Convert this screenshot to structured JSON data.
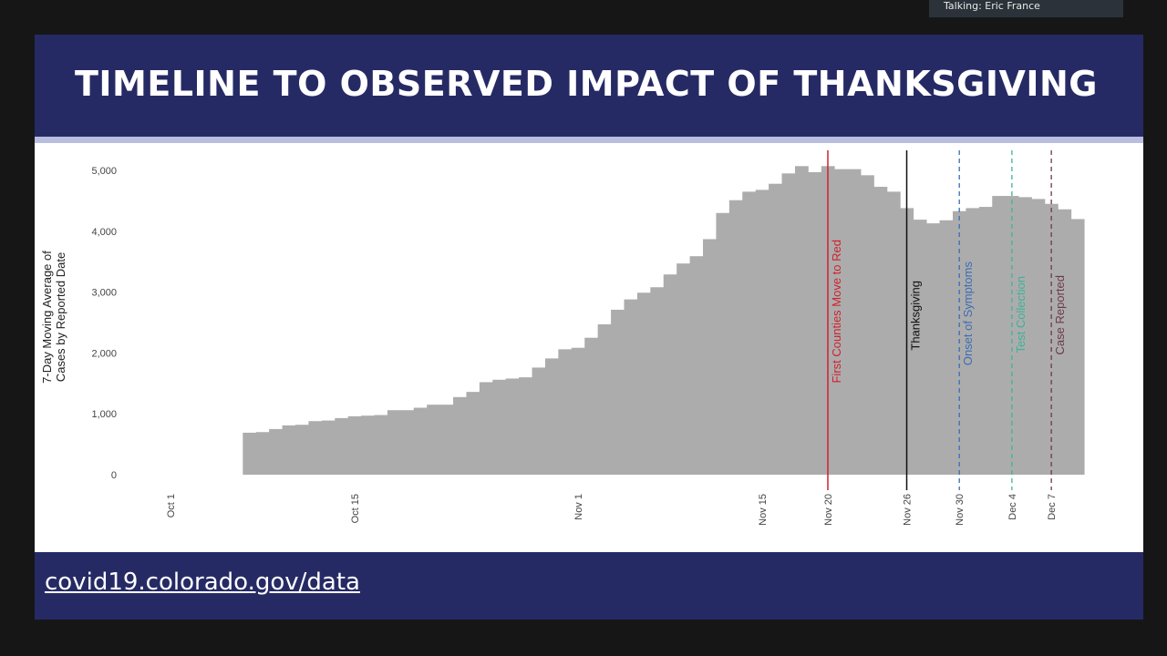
{
  "call": {
    "talking": "Talking: Eric France"
  },
  "slide": {
    "title": "TIMELINE TO OBSERVED IMPACT OF THANKSGIVING",
    "footer_link": "covid19.colorado.gov/data"
  },
  "chart_data": {
    "type": "bar",
    "title": "",
    "xlabel": "",
    "ylabel": [
      "7-Day Moving Average of",
      "Cases by Reported Date"
    ],
    "ylim": [
      0,
      5000
    ],
    "yticks": [
      0,
      1000,
      2000,
      3000,
      4000,
      5000
    ],
    "ytick_labels": [
      "0",
      "1,000",
      "2,000",
      "3,000",
      "4,000",
      "5,000"
    ],
    "xticks": [
      "Oct 1",
      "Oct 15",
      "Nov 1",
      "Nov 15",
      "Nov 20",
      "Nov 26",
      "Nov 30",
      "Dec 4",
      "Dec 7"
    ],
    "bar_color": "#adacac",
    "dates": [
      "Oct 7",
      "Oct 8",
      "Oct 9",
      "Oct 10",
      "Oct 11",
      "Oct 12",
      "Oct 13",
      "Oct 14",
      "Oct 15",
      "Oct 16",
      "Oct 17",
      "Oct 18",
      "Oct 19",
      "Oct 20",
      "Oct 21",
      "Oct 22",
      "Oct 23",
      "Oct 24",
      "Oct 25",
      "Oct 26",
      "Oct 27",
      "Oct 28",
      "Oct 29",
      "Oct 30",
      "Oct 31",
      "Nov 1",
      "Nov 2",
      "Nov 3",
      "Nov 4",
      "Nov 5",
      "Nov 6",
      "Nov 7",
      "Nov 8",
      "Nov 9",
      "Nov 10",
      "Nov 11",
      "Nov 12",
      "Nov 13",
      "Nov 14",
      "Nov 15",
      "Nov 16",
      "Nov 17",
      "Nov 18",
      "Nov 19",
      "Nov 20",
      "Nov 21",
      "Nov 22",
      "Nov 23",
      "Nov 24",
      "Nov 25",
      "Nov 26",
      "Nov 27",
      "Nov 28",
      "Nov 29",
      "Nov 30",
      "Dec 1",
      "Dec 2",
      "Dec 3",
      "Dec 4",
      "Dec 5",
      "Dec 6",
      "Dec 7",
      "Dec 8",
      "Dec 9"
    ],
    "values": [
      690,
      700,
      750,
      810,
      820,
      880,
      890,
      930,
      960,
      970,
      980,
      1060,
      1060,
      1100,
      1150,
      1150,
      1275,
      1360,
      1520,
      1560,
      1580,
      1600,
      1760,
      1910,
      2060,
      2085,
      2250,
      2470,
      2710,
      2880,
      2990,
      3080,
      3290,
      3470,
      3590,
      3870,
      4300,
      4510,
      4650,
      4680,
      4780,
      4950,
      5070,
      4970,
      5070,
      5020,
      5020,
      4920,
      4730,
      4650,
      4380,
      4190,
      4130,
      4180,
      4330,
      4380,
      4400,
      4580,
      4580,
      4560,
      4530,
      4450,
      4360,
      4200
    ],
    "annotations": [
      {
        "date": "Nov 20",
        "label": "First Counties Move to Red",
        "color": "#d0202e",
        "style": "solid"
      },
      {
        "date": "Nov 26",
        "label": "Thanksgiving",
        "color": "#111111",
        "style": "solid"
      },
      {
        "date": "Nov 30",
        "label": "Onset of Symptoms",
        "color": "#3a6db5",
        "style": "dashed"
      },
      {
        "date": "Dec 4",
        "label": "Test Collection",
        "color": "#3bb39a",
        "style": "dashed"
      },
      {
        "date": "Dec 7",
        "label": "Case Reported",
        "color": "#6b3a4e",
        "style": "dashed"
      }
    ]
  }
}
